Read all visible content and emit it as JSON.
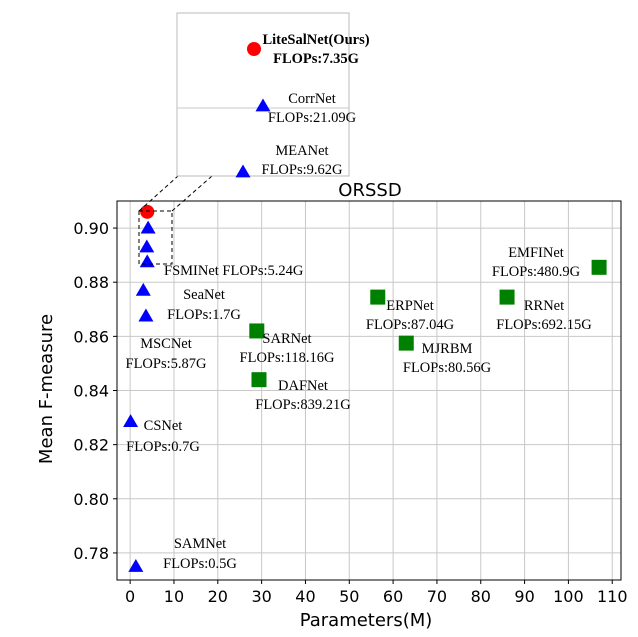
{
  "chart_data": {
    "type": "scatter",
    "title": "ORSSD",
    "xlabel": "Parameters(M)",
    "ylabel": "Mean F-measure",
    "xlim": [
      -3,
      112
    ],
    "ylim": [
      0.77,
      0.91
    ],
    "xticks": [
      0,
      10,
      20,
      30,
      40,
      50,
      60,
      70,
      80,
      90,
      100,
      110
    ],
    "yticks": [
      0.78,
      0.8,
      0.82,
      0.84,
      0.86,
      0.88,
      0.9
    ],
    "grid": true,
    "points": [
      {
        "name": "LiteSalNet(Ours)",
        "x": 3.9,
        "y": 0.906,
        "marker": "circle",
        "color": "#ff0000",
        "label_lines": []
      },
      {
        "name": "CorrNet",
        "x": 4.1,
        "y": 0.9,
        "marker": "triangle",
        "color": "#0000ff",
        "label_lines": []
      },
      {
        "name": "MEANet",
        "x": 3.8,
        "y": 0.893,
        "marker": "triangle",
        "color": "#0000ff",
        "label_lines": []
      },
      {
        "name": "FSMINet",
        "x": 3.9,
        "y": 0.8875,
        "marker": "triangle",
        "color": "#0000ff",
        "label_lines": [
          "FSMINet FLOPs:5.24G"
        ]
      },
      {
        "name": "SeaNet",
        "x": 3.0,
        "y": 0.877,
        "marker": "triangle",
        "color": "#0000ff",
        "label_lines": [
          "SeaNet",
          "FLOPs:1.7G"
        ]
      },
      {
        "name": "MSCNet",
        "x": 3.6,
        "y": 0.8675,
        "marker": "triangle",
        "color": "#0000ff",
        "label_lines": [
          "MSCNet",
          "FLOPs:5.87G"
        ]
      },
      {
        "name": "CSNet",
        "x": 0.1,
        "y": 0.8285,
        "marker": "triangle",
        "color": "#0000ff",
        "label_lines": [
          "CSNet",
          "FLOPs:0.7G"
        ]
      },
      {
        "name": "SAMNet",
        "x": 1.3,
        "y": 0.775,
        "marker": "triangle",
        "color": "#0000ff",
        "label_lines": [
          "SAMNet",
          "FLOPs:0.5G"
        ]
      },
      {
        "name": "SARNet",
        "x": 28.9,
        "y": 0.862,
        "marker": "square",
        "color": "#008000",
        "label_lines": [
          "SARNet",
          "FLOPs:118.16G"
        ]
      },
      {
        "name": "DAFNet",
        "x": 29.4,
        "y": 0.844,
        "marker": "square",
        "color": "#008000",
        "label_lines": [
          "DAFNet",
          "FLOPs:839.21G"
        ]
      },
      {
        "name": "ERPNet",
        "x": 56.5,
        "y": 0.8745,
        "marker": "square",
        "color": "#008000",
        "label_lines": [
          "ERPNet",
          "FLOPs:87.04G"
        ]
      },
      {
        "name": "MJRBM",
        "x": 63.0,
        "y": 0.8575,
        "marker": "square",
        "color": "#008000",
        "label_lines": [
          "MJRBM",
          "FLOPs:80.56G"
        ]
      },
      {
        "name": "RRNet",
        "x": 86.0,
        "y": 0.8745,
        "marker": "square",
        "color": "#008000",
        "label_lines": [
          "RRNet",
          "FLOPs:692.15G"
        ]
      },
      {
        "name": "EMFINet",
        "x": 107.0,
        "y": 0.8855,
        "marker": "square",
        "color": "#008000",
        "label_lines": [
          "EMFINet",
          "FLOPs:480.9G"
        ]
      }
    ],
    "inset": {
      "entries": [
        {
          "name": "LiteSalNet(Ours)",
          "marker": "circle",
          "color": "#ff0000",
          "bold": true,
          "label_lines": [
            "LiteSalNet(Ours)",
            "FLOPs:7.35G"
          ]
        },
        {
          "name": "CorrNet",
          "marker": "triangle",
          "color": "#0000ff",
          "bold": false,
          "label_lines": [
            "CorrNet",
            "FLOPs:21.09G"
          ]
        },
        {
          "name": "MEANet",
          "marker": "triangle",
          "color": "#0000ff",
          "bold": false,
          "label_lines": [
            "MEANet",
            "FLOPs:9.62G"
          ]
        }
      ]
    }
  }
}
